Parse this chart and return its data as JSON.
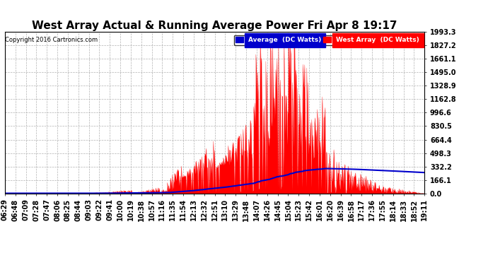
{
  "title": "West Array Actual & Running Average Power Fri Apr 8 19:17",
  "copyright": "Copyright 2016 Cartronics.com",
  "legend_labels": [
    "Average  (DC Watts)",
    "West Array  (DC Watts)"
  ],
  "legend_colors": [
    "#0000cc",
    "#ff0000"
  ],
  "ymax": 1993.3,
  "yticks": [
    0.0,
    166.1,
    332.2,
    498.3,
    664.4,
    830.5,
    996.6,
    1162.8,
    1328.9,
    1495.0,
    1661.1,
    1827.2,
    1993.3
  ],
  "background_color": "#ffffff",
  "plot_background": "#ffffff",
  "grid_color": "#aaaaaa",
  "area_color": "#ff0000",
  "line_color": "#0000cc",
  "title_fontsize": 11,
  "tick_label_fontsize": 7
}
